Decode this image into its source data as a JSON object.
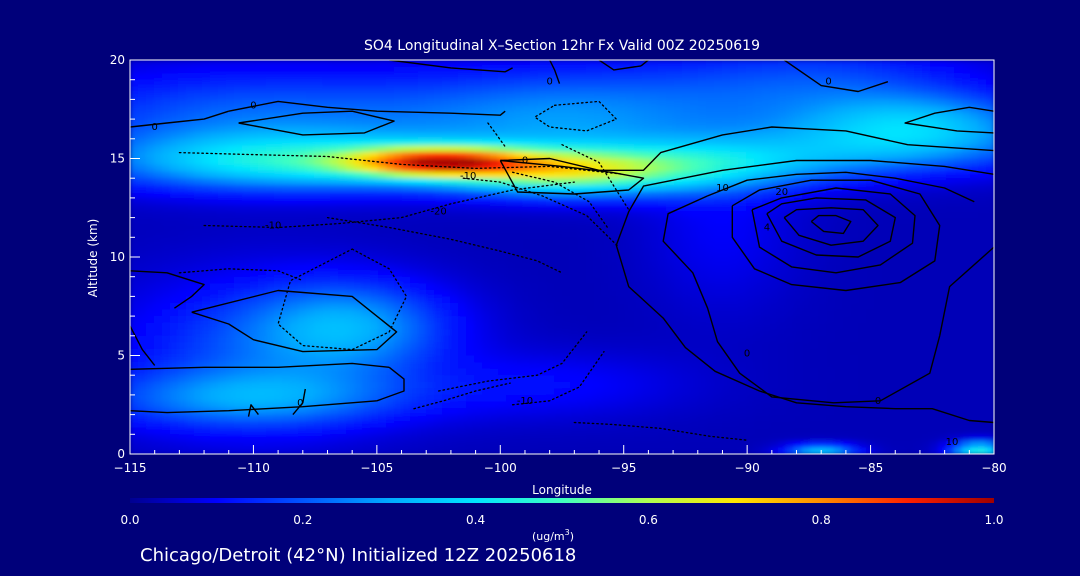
{
  "chart_data": {
    "type": "heatmap",
    "title": "SO4 Longitudinal X–Section 12hr  Fx Valid 00Z 20250619",
    "xlabel": "Longitude",
    "ylabel": "Altitude (km)",
    "xlim": [
      -115,
      -80
    ],
    "ylim": [
      0,
      20
    ],
    "x_ticks": [
      {
        "value": -115,
        "label": "−115"
      },
      {
        "value": -110,
        "label": "−110"
      },
      {
        "value": -105,
        "label": "−105"
      },
      {
        "value": -100,
        "label": "−100"
      },
      {
        "value": -95,
        "label": "−95"
      },
      {
        "value": -90,
        "label": "−90"
      },
      {
        "value": -85,
        "label": "−85"
      },
      {
        "value": -80,
        "label": "−80"
      }
    ],
    "y_ticks": [
      {
        "value": 0,
        "label": "0"
      },
      {
        "value": 5,
        "label": "5"
      },
      {
        "value": 10,
        "label": "10"
      },
      {
        "value": 15,
        "label": "15"
      },
      {
        "value": 20,
        "label": "20"
      }
    ],
    "colorbar": {
      "label_base": "(ug/m",
      "label_sup": "3",
      "label_end": ")",
      "range": [
        0.0,
        1.0
      ],
      "ticks": [
        {
          "value": 0.0,
          "label": "0.0"
        },
        {
          "value": 0.2,
          "label": "0.2"
        },
        {
          "value": 0.4,
          "label": "0.4"
        },
        {
          "value": 0.6,
          "label": "0.6"
        },
        {
          "value": 0.8,
          "label": "0.8"
        },
        {
          "value": 1.0,
          "label": "1.0"
        }
      ],
      "colors": [
        "#000090",
        "#0000ff",
        "#0055ff",
        "#00aaff",
        "#00e5ff",
        "#40ffc0",
        "#b0ff50",
        "#ffe600",
        "#ff8c00",
        "#ff2000",
        "#a00000"
      ]
    },
    "field_blobs": [
      {
        "lon": -102.5,
        "alt": 14.8,
        "slon": 2.6,
        "salt": 0.55,
        "value": 0.62
      },
      {
        "lon": -97.5,
        "alt": 14.3,
        "slon": 3.2,
        "salt": 0.8,
        "value": 0.42
      },
      {
        "lon": -108.5,
        "alt": 14.8,
        "slon": 5.2,
        "salt": 1.0,
        "value": 0.33
      },
      {
        "lon": -92,
        "alt": 14.6,
        "slon": 4.0,
        "salt": 0.9,
        "value": 0.26
      },
      {
        "lon": -84,
        "alt": 15.6,
        "slon": 4.5,
        "salt": 1.0,
        "value": 0.22
      },
      {
        "lon": -83,
        "alt": 17.0,
        "slon": 3.5,
        "salt": 1.0,
        "value": 0.2
      },
      {
        "lon": -97,
        "alt": 17.0,
        "slon": 5.0,
        "salt": 1.8,
        "value": 0.22
      },
      {
        "lon": -110,
        "alt": 17.0,
        "slon": 6.0,
        "salt": 1.8,
        "value": 0.18
      },
      {
        "lon": -87,
        "alt": 18.8,
        "slon": 4.5,
        "salt": 1.5,
        "value": 0.14
      },
      {
        "lon": -106,
        "alt": 6.5,
        "slon": 2.8,
        "salt": 1.6,
        "value": 0.22
      },
      {
        "lon": -110,
        "alt": 5.0,
        "slon": 4.0,
        "salt": 2.8,
        "value": 0.14
      },
      {
        "lon": -110,
        "alt": 2.8,
        "slon": 4.5,
        "salt": 1.0,
        "value": 0.18
      },
      {
        "lon": -98,
        "alt": 3.5,
        "slon": 4.0,
        "salt": 1.2,
        "value": 0.07
      },
      {
        "lon": -91,
        "alt": 11.5,
        "slon": 2.2,
        "salt": 3.0,
        "value": 0.06
      },
      {
        "lon": -80.6,
        "alt": 0.2,
        "slon": 0.8,
        "salt": 0.3,
        "value": 0.4
      },
      {
        "lon": -87,
        "alt": 0.15,
        "slon": 1.0,
        "salt": 0.25,
        "value": 0.3
      }
    ],
    "contours": [
      {
        "style": "solid",
        "lons": [
          -115,
          -112,
          -109,
          -106,
          -104.5
        ],
        "alts": [
          4.3,
          4.4,
          4.4,
          4.6,
          4.4
        ]
      },
      {
        "style": "solid",
        "lons": [
          -104.5,
          -103.9,
          -103.9,
          -105
        ],
        "alts": [
          4.4,
          3.8,
          3.2,
          2.7
        ]
      },
      {
        "style": "solid",
        "lons": [
          -105,
          -108,
          -111,
          -113.5,
          -115
        ],
        "alts": [
          2.7,
          2.4,
          2.2,
          2.1,
          2.2
        ]
      },
      {
        "style": "solid",
        "lons": [
          -115,
          -113.5,
          -112,
          -112.5,
          -113.2
        ],
        "alts": [
          9.3,
          9.2,
          8.6,
          8.0,
          7.4
        ]
      },
      {
        "style": "solid",
        "lons": [
          -112.5,
          -109,
          -106,
          -104.2,
          -105,
          -108,
          -110,
          -111,
          -112.5
        ],
        "alts": [
          7.2,
          8.3,
          8.0,
          6.2,
          5.3,
          5.2,
          5.8,
          6.6,
          7.2
        ]
      },
      {
        "style": "solid",
        "lons": [
          -115,
          -113.5,
          -112,
          -111
        ],
        "alts": [
          16.6,
          16.8,
          17.0,
          17.4
        ]
      },
      {
        "style": "solid",
        "lons": [
          -111,
          -109,
          -107,
          -105,
          -102,
          -100,
          -99.8
        ],
        "alts": [
          17.4,
          17.9,
          17.6,
          17.4,
          17.3,
          17.2,
          17.4
        ]
      },
      {
        "style": "solid",
        "lons": [
          -110.6,
          -108,
          -106,
          -104.3,
          -105.5,
          -108,
          -110.6
        ],
        "alts": [
          16.8,
          17.3,
          17.4,
          16.9,
          16.3,
          16.2,
          16.8
        ]
      },
      {
        "style": "solid",
        "lons": [
          -100,
          -97.5,
          -95.5,
          -94.2,
          -94.8,
          -97,
          -99.3,
          -100
        ],
        "alts": [
          14.9,
          14.6,
          14.3,
          14.0,
          13.4,
          13.2,
          13.3,
          14.9
        ]
      },
      {
        "style": "solid",
        "lons": [
          -100,
          -98,
          -96,
          -94.2,
          -93.5,
          -91,
          -89,
          -86,
          -83.5,
          -80
        ],
        "alts": [
          14.9,
          15.0,
          14.4,
          14.4,
          15.3,
          16.2,
          16.6,
          16.4,
          15.7,
          15.4
        ]
      },
      {
        "style": "solid",
        "lons": [
          -80,
          -81,
          -82.4,
          -83.6,
          -81.5,
          -80
        ],
        "alts": [
          17.4,
          17.6,
          17.3,
          16.8,
          16.4,
          16.3
        ]
      },
      {
        "style": "solid",
        "lons": [
          -88.5,
          -87,
          -85.5,
          -84.3
        ],
        "alts": [
          20,
          18.7,
          18.4,
          18.9
        ]
      },
      {
        "style": "solid",
        "lons": [
          -80,
          -82,
          -85,
          -88,
          -91,
          -94.2,
          -94.8,
          -95.3,
          -94.8,
          -93.4,
          -92.5,
          -91.3,
          -89.5,
          -88,
          -86,
          -84,
          -82.5,
          -81,
          -80
        ],
        "alts": [
          14.2,
          14.6,
          14.9,
          14.9,
          14.4,
          13.6,
          12.3,
          10.6,
          8.5,
          6.9,
          5.4,
          4.2,
          3.2,
          2.6,
          2.4,
          2.3,
          2.3,
          1.7,
          1.6
        ]
      },
      {
        "style": "solid",
        "lons": [
          -91.6,
          -93.2,
          -93.4,
          -92.2,
          -91.6,
          -91.2,
          -90.3,
          -89.0,
          -86.5,
          -84.6,
          -82.6,
          -82.2
        ],
        "alts": [
          13.1,
          12.2,
          10.8,
          9.2,
          7.4,
          5.7,
          4.1,
          2.9,
          2.6,
          2.7,
          4.1,
          6.0
        ]
      },
      {
        "style": "solid",
        "lons": [
          -82.2,
          -81.8,
          -80
        ],
        "alts": [
          6.0,
          8.5,
          10.5
        ]
      },
      {
        "style": "solid",
        "lons": [
          -91.6,
          -90,
          -88,
          -86,
          -84,
          -82,
          -80.8
        ],
        "alts": [
          13.1,
          13.9,
          14.2,
          14.3,
          14.0,
          13.5,
          12.8
        ]
      },
      {
        "style": "solid",
        "lons": [
          -90.6,
          -90.6,
          -89.7,
          -88.2,
          -86,
          -83.8,
          -82.4,
          -82.2,
          -83.0,
          -85,
          -87.4,
          -89.5,
          -90.6
        ],
        "alts": [
          12.6,
          11.0,
          9.4,
          8.6,
          8.3,
          8.7,
          9.8,
          11.6,
          13.2,
          13.9,
          13.9,
          13.4,
          12.6
        ]
      },
      {
        "style": "solid",
        "lons": [
          -89.8,
          -89.5,
          -88.2,
          -86.4,
          -84.6,
          -83.3,
          -83.2,
          -84.2,
          -86.4,
          -88.6,
          -89.8
        ],
        "alts": [
          12.4,
          10.5,
          9.5,
          9.2,
          9.6,
          10.7,
          12.1,
          13.2,
          13.5,
          13.0,
          12.4
        ]
      },
      {
        "style": "solid",
        "lons": [
          -89.2,
          -88.6,
          -87.2,
          -85.5,
          -84.2,
          -84.0,
          -85.2,
          -87.2,
          -88.6,
          -89.2
        ],
        "alts": [
          12.2,
          10.8,
          10.1,
          10.0,
          10.8,
          12.0,
          12.9,
          13.0,
          12.7,
          12.2
        ]
      },
      {
        "style": "solid",
        "lons": [
          -88.5,
          -87.9,
          -86.6,
          -85.3,
          -84.7,
          -85.3,
          -86.6,
          -88.0,
          -88.5
        ],
        "alts": [
          12.0,
          11.1,
          10.6,
          10.8,
          11.6,
          12.4,
          12.5,
          12.4,
          12.0
        ]
      },
      {
        "style": "solid",
        "lons": [
          -87.4,
          -86.9,
          -86.1,
          -85.8,
          -86.4,
          -87.1,
          -87.4
        ],
        "alts": [
          11.8,
          11.3,
          11.2,
          11.8,
          12.1,
          12.1,
          11.8
        ]
      },
      {
        "style": "solid",
        "lons": [
          -115,
          -114.5,
          -114.0
        ],
        "alts": [
          6.5,
          5.3,
          4.5
        ]
      },
      {
        "style": "solid",
        "lons": [
          -108.4,
          -108.0,
          -107.9
        ],
        "alts": [
          2.0,
          2.6,
          3.3
        ]
      },
      {
        "style": "solid",
        "lons": [
          -110.2,
          -110.1,
          -109.8
        ],
        "alts": [
          1.9,
          2.5,
          2.0
        ]
      },
      {
        "style": "solid",
        "lons": [
          -104.5,
          -102,
          -99.8,
          -99.5
        ],
        "alts": [
          20.0,
          19.6,
          19.4,
          19.6
        ]
      },
      {
        "style": "solid",
        "lons": [
          -97.6,
          -97.8,
          -98.0
        ],
        "alts": [
          18.8,
          19.5,
          20.0
        ]
      },
      {
        "style": "solid",
        "lons": [
          -96,
          -95.4,
          -94.3
        ],
        "alts": [
          20.0,
          19.5,
          19.7
        ]
      },
      {
        "style": "solid",
        "lons": [
          -94.3,
          -94.0,
          -94.2
        ],
        "alts": [
          19.7,
          20.0,
          20.0
        ]
      },
      {
        "style": "dotted",
        "lons": [
          -113,
          -110,
          -107,
          -104,
          -101,
          -98,
          -95
        ],
        "alts": [
          15.3,
          15.2,
          15.1,
          14.7,
          14.5,
          14.6,
          14.2
        ]
      },
      {
        "style": "dotted",
        "lons": [
          -112,
          -109,
          -106.5,
          -104,
          -102,
          -99.5,
          -97
        ],
        "alts": [
          11.6,
          11.5,
          11.7,
          12.0,
          12.7,
          13.4,
          13.8
        ]
      },
      {
        "style": "dotted",
        "lons": [
          -107,
          -104.5,
          -102,
          -100,
          -98.5,
          -97.5
        ],
        "alts": [
          12.0,
          11.5,
          10.9,
          10.3,
          9.8,
          9.2
        ]
      },
      {
        "style": "dotted",
        "lons": [
          -101.5,
          -100,
          -98.3,
          -96.5,
          -95.2
        ],
        "alts": [
          14.0,
          13.8,
          13.1,
          12.1,
          10.5
        ]
      },
      {
        "style": "dotted",
        "lons": [
          -99.5,
          -97.8,
          -96.4,
          -95.6
        ],
        "alts": [
          14.3,
          13.8,
          12.8,
          11.4
        ]
      },
      {
        "style": "dotted",
        "lons": [
          -97.5,
          -96.0,
          -94.8
        ],
        "alts": [
          15.7,
          14.8,
          12.4
        ]
      },
      {
        "style": "dotted",
        "lons": [
          -106,
          -104.5,
          -103.8,
          -104.5,
          -106,
          -108,
          -109,
          -108.5,
          -106
        ],
        "alts": [
          10.4,
          9.4,
          8.0,
          6.2,
          5.3,
          5.5,
          6.6,
          8.8,
          10.4
        ]
      },
      {
        "style": "dotted",
        "lons": [
          -113,
          -111,
          -109,
          -108
        ],
        "alts": [
          9.2,
          9.4,
          9.3,
          8.8
        ]
      },
      {
        "style": "dotted",
        "lons": [
          -102.5,
          -100.5,
          -98.5,
          -97.5,
          -96.5
        ],
        "alts": [
          3.2,
          3.7,
          4.0,
          4.6,
          6.2
        ]
      },
      {
        "style": "dotted",
        "lons": [
          -99.5,
          -98.0,
          -96.8,
          -95.8
        ],
        "alts": [
          2.5,
          2.7,
          3.4,
          5.2
        ]
      },
      {
        "style": "dotted",
        "lons": [
          -103.5,
          -102.3,
          -101.0,
          -99.6
        ],
        "alts": [
          2.3,
          2.7,
          3.2,
          3.6
        ]
      },
      {
        "style": "dotted",
        "lons": [
          -97,
          -95.5,
          -93.5,
          -91.5,
          -90
        ],
        "alts": [
          1.6,
          1.5,
          1.3,
          0.9,
          0.7
        ]
      },
      {
        "style": "dotted",
        "lons": [
          -97.8,
          -96,
          -95.3,
          -96.5,
          -98,
          -98.6,
          -97.8
        ],
        "alts": [
          17.7,
          17.9,
          17.0,
          16.4,
          16.6,
          17.1,
          17.7
        ]
      },
      {
        "style": "dotted",
        "lons": [
          -100.5,
          -100.2,
          -99.8
        ],
        "alts": [
          16.8,
          16.3,
          15.6
        ]
      }
    ],
    "contour_labels": [
      {
        "lon": -110,
        "alt": 17.7,
        "text": "0"
      },
      {
        "lon": -114,
        "alt": 16.6,
        "text": "0"
      },
      {
        "lon": -99,
        "alt": 14.9,
        "text": "0"
      },
      {
        "lon": -101.3,
        "alt": 14.1,
        "text": "-10"
      },
      {
        "lon": -102.5,
        "alt": 12.3,
        "text": "-20"
      },
      {
        "lon": -109.2,
        "alt": 11.6,
        "text": "-10"
      },
      {
        "lon": -91.0,
        "alt": 13.5,
        "text": "10"
      },
      {
        "lon": -88.6,
        "alt": 13.3,
        "text": "20"
      },
      {
        "lon": -89.2,
        "alt": 11.5,
        "text": "4"
      },
      {
        "lon": -90.0,
        "alt": 5.1,
        "text": "0"
      },
      {
        "lon": -84.7,
        "alt": 2.7,
        "text": "0"
      },
      {
        "lon": -108.1,
        "alt": 2.6,
        "text": "0"
      },
      {
        "lon": -99.0,
        "alt": 2.7,
        "text": "-10"
      },
      {
        "lon": -98.0,
        "alt": 18.9,
        "text": "0"
      },
      {
        "lon": -86.7,
        "alt": 18.9,
        "text": "0"
      },
      {
        "lon": -81.7,
        "alt": 0.6,
        "text": "10"
      }
    ]
  },
  "footer_text": "Chicago/Detroit (42°N) Initialized 12Z 20250618"
}
